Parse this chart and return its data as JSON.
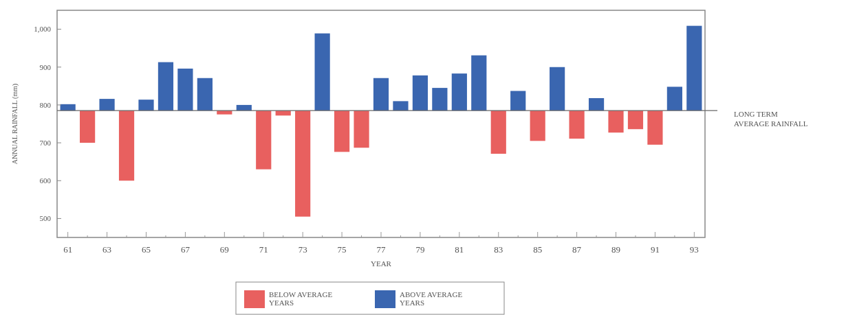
{
  "chart_data": {
    "type": "bar",
    "xlabel": "YEAR",
    "ylabel": "ANNUAL RAINFALL (mm)",
    "categories": [
      "61",
      null,
      "63",
      null,
      "65",
      null,
      "67",
      null,
      "69",
      null,
      "71",
      null,
      "73",
      null,
      "75",
      null,
      "77",
      null,
      "79",
      null,
      "81",
      null,
      "83",
      null,
      "85",
      null,
      "87",
      null,
      "89",
      null,
      "91",
      null,
      "93"
    ],
    "series": [
      {
        "name": "BELOW AVERAGE YEARS",
        "color": "#e8605f",
        "base": [
          null,
          785,
          null,
          785,
          null,
          null,
          null,
          null,
          785,
          null,
          785,
          785,
          785,
          null,
          785,
          785,
          null,
          null,
          null,
          null,
          null,
          null,
          785,
          null,
          785,
          null,
          785,
          null,
          785,
          785,
          785,
          null,
          null
        ],
        "values": [
          null,
          -85,
          null,
          -185,
          null,
          null,
          null,
          null,
          -10,
          null,
          -155,
          -13,
          -280,
          null,
          -109,
          -98,
          null,
          null,
          null,
          null,
          null,
          null,
          -114,
          null,
          -80,
          null,
          -74,
          null,
          -58,
          -49,
          -90,
          null,
          null
        ]
      },
      {
        "name": "ABOVE AVERAGE YEARS",
        "color": "#3a66b0",
        "base": [
          785,
          null,
          785,
          null,
          785,
          785,
          785,
          785,
          null,
          785,
          null,
          null,
          null,
          785,
          null,
          null,
          785,
          785,
          785,
          785,
          785,
          785,
          null,
          785,
          null,
          785,
          null,
          785,
          null,
          null,
          null,
          785,
          785
        ],
        "values": [
          17,
          null,
          31,
          null,
          29,
          128,
          111,
          86,
          null,
          15,
          null,
          null,
          null,
          204,
          null,
          null,
          86,
          25,
          93,
          60,
          98,
          146,
          null,
          52,
          null,
          115,
          null,
          33,
          null,
          null,
          null,
          63,
          224
        ]
      }
    ],
    "ylim": [
      450,
      1050
    ],
    "yticks": [
      500,
      600,
      700,
      800,
      900,
      {
        "value": 1000,
        "label": "1,000"
      }
    ],
    "ref_lines": [
      {
        "axis": "y",
        "value": 785,
        "label": "LONG TERM AVERAGE RAINFALL"
      }
    ],
    "legend": "bottom",
    "grid": false
  }
}
